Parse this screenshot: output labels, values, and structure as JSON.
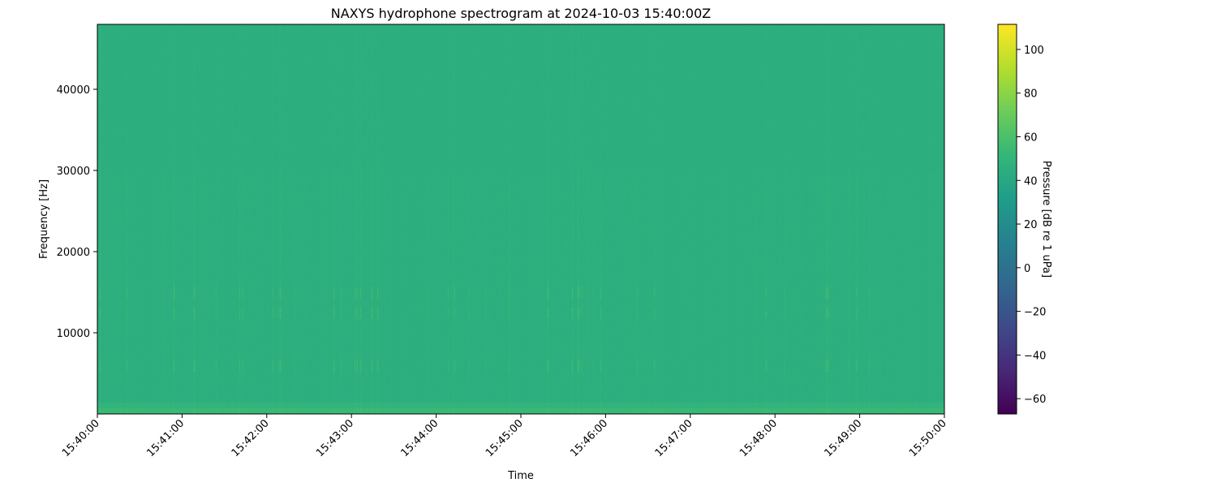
{
  "chart_data": {
    "type": "heatmap",
    "title": "NAXYS hydrophone spectrogram at 2024-10-03 15:40:00Z",
    "xlabel": "Time",
    "ylabel": "Frequency [Hz]",
    "colorbar_label": "Pressure [dB re 1 uPa]",
    "colormap": "viridis",
    "xlim": [
      "15:40:00",
      "15:50:00"
    ],
    "ylim": [
      0,
      48000
    ],
    "clim": [
      -67,
      111.5
    ],
    "x_ticks": [
      "15:40:00",
      "15:41:00",
      "15:42:00",
      "15:43:00",
      "15:44:00",
      "15:45:00",
      "15:46:00",
      "15:47:00",
      "15:48:00",
      "15:49:00",
      "15:50:00"
    ],
    "y_ticks": [
      10000,
      20000,
      30000,
      40000
    ],
    "y_tick_labels": [
      "10000",
      "20000",
      "30000",
      "40000"
    ],
    "colorbar_ticks": [
      100,
      80,
      60,
      40,
      20,
      0,
      -20,
      -40,
      -60
    ],
    "colorbar_tick_labels": [
      "100",
      "80",
      "60",
      "40",
      "20",
      "0",
      "−20",
      "−40",
      "−60"
    ],
    "background_level_db": 45,
    "notable_bands_hz": [
      6000,
      12500,
      15000
    ],
    "grid": false
  }
}
